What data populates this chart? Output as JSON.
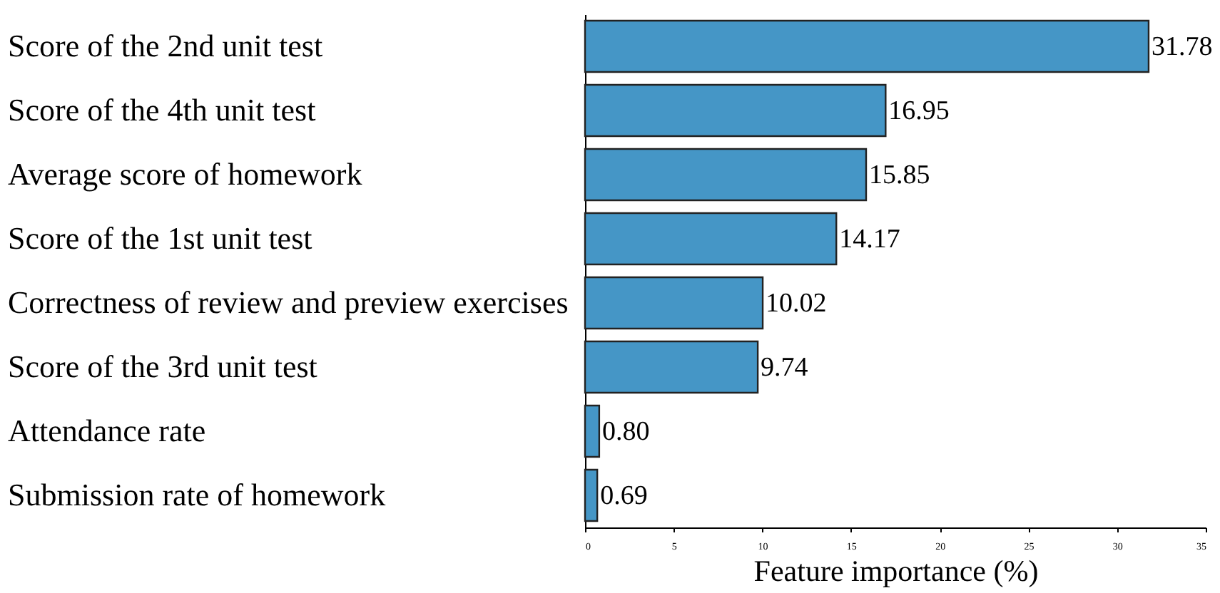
{
  "chart_data": {
    "type": "bar",
    "orientation": "horizontal",
    "xlabel": "Feature importance (%)",
    "categories": [
      "Score of the 2nd unit test",
      "Score of the 4th unit test",
      "Average score of homework",
      "Score of the 1st unit test",
      "Correctness of review and preview exercises",
      "Score of the 3rd unit test",
      "Attendance rate",
      "Submission rate of homework"
    ],
    "values": [
      31.78,
      16.95,
      15.85,
      14.17,
      10.02,
      9.74,
      0.8,
      0.69
    ],
    "value_labels": [
      "31.78",
      "16.95",
      "15.85",
      "14.17",
      "10.02",
      "9.74",
      "0.80",
      "0.69"
    ],
    "color": "#4596c6",
    "xlim": [
      0,
      35
    ],
    "xticks": [
      0,
      5,
      10,
      15,
      20,
      25,
      30,
      35
    ],
    "grid": false
  }
}
